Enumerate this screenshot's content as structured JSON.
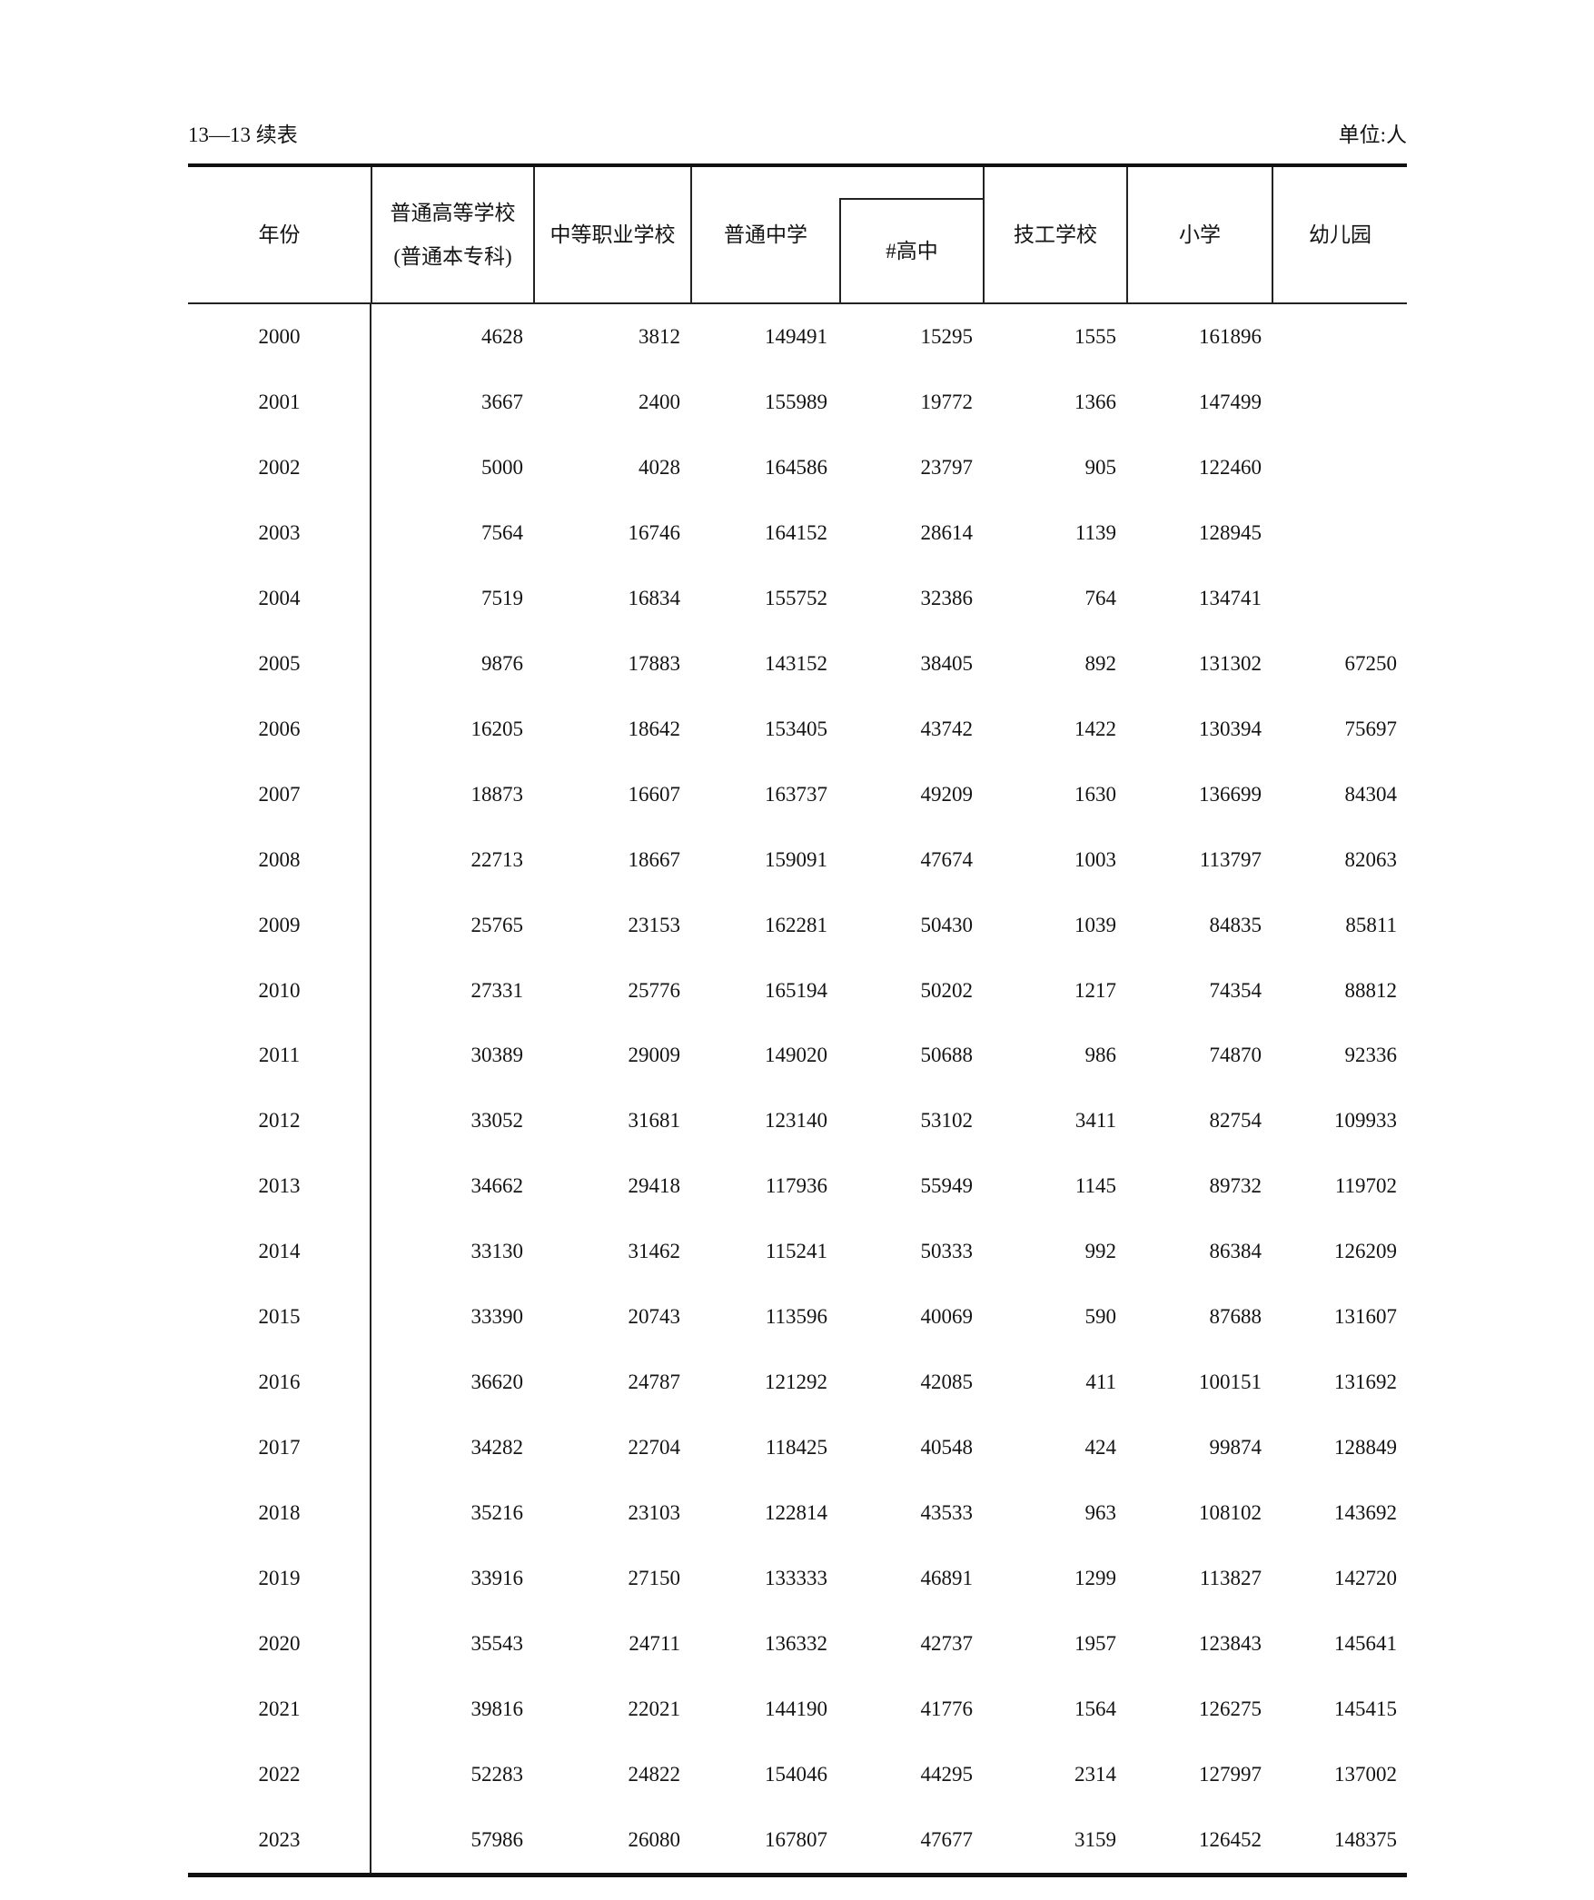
{
  "page": {
    "continuation_label": "13—13 续表",
    "unit_label": "单位:人"
  },
  "table": {
    "header": {
      "year": "年份",
      "higher_education_line1": "普通高等学校",
      "higher_education_line2": "(普通本专科)",
      "secondary_vocational": "中等职业学校",
      "regular_secondary": "普通中学",
      "senior_high": "#高中",
      "technical_school": "技工学校",
      "primary_school": "小学",
      "kindergarten": "幼儿园"
    },
    "rows": [
      {
        "year": "2000",
        "values": [
          "4628",
          "3812",
          "149491",
          "15295",
          "1555",
          "161896",
          ""
        ]
      },
      {
        "year": "2001",
        "values": [
          "3667",
          "2400",
          "155989",
          "19772",
          "1366",
          "147499",
          ""
        ]
      },
      {
        "year": "2002",
        "values": [
          "5000",
          "4028",
          "164586",
          "23797",
          "905",
          "122460",
          ""
        ]
      },
      {
        "year": "2003",
        "values": [
          "7564",
          "16746",
          "164152",
          "28614",
          "1139",
          "128945",
          ""
        ]
      },
      {
        "year": "2004",
        "values": [
          "7519",
          "16834",
          "155752",
          "32386",
          "764",
          "134741",
          ""
        ]
      },
      {
        "year": "2005",
        "values": [
          "9876",
          "17883",
          "143152",
          "38405",
          "892",
          "131302",
          "67250"
        ]
      },
      {
        "year": "2006",
        "values": [
          "16205",
          "18642",
          "153405",
          "43742",
          "1422",
          "130394",
          "75697"
        ]
      },
      {
        "year": "2007",
        "values": [
          "18873",
          "16607",
          "163737",
          "49209",
          "1630",
          "136699",
          "84304"
        ]
      },
      {
        "year": "2008",
        "values": [
          "22713",
          "18667",
          "159091",
          "47674",
          "1003",
          "113797",
          "82063"
        ]
      },
      {
        "year": "2009",
        "values": [
          "25765",
          "23153",
          "162281",
          "50430",
          "1039",
          "84835",
          "85811"
        ]
      },
      {
        "year": "2010",
        "values": [
          "27331",
          "25776",
          "165194",
          "50202",
          "1217",
          "74354",
          "88812"
        ]
      },
      {
        "year": "2011",
        "values": [
          "30389",
          "29009",
          "149020",
          "50688",
          "986",
          "74870",
          "92336"
        ]
      },
      {
        "year": "2012",
        "values": [
          "33052",
          "31681",
          "123140",
          "53102",
          "3411",
          "82754",
          "109933"
        ]
      },
      {
        "year": "2013",
        "values": [
          "34662",
          "29418",
          "117936",
          "55949",
          "1145",
          "89732",
          "119702"
        ]
      },
      {
        "year": "2014",
        "values": [
          "33130",
          "31462",
          "115241",
          "50333",
          "992",
          "86384",
          "126209"
        ]
      },
      {
        "year": "2015",
        "values": [
          "33390",
          "20743",
          "113596",
          "40069",
          "590",
          "87688",
          "131607"
        ]
      },
      {
        "year": "2016",
        "values": [
          "36620",
          "24787",
          "121292",
          "42085",
          "411",
          "100151",
          "131692"
        ]
      },
      {
        "year": "2017",
        "values": [
          "34282",
          "22704",
          "118425",
          "40548",
          "424",
          "99874",
          "128849"
        ]
      },
      {
        "year": "2018",
        "values": [
          "35216",
          "23103",
          "122814",
          "43533",
          "963",
          "108102",
          "143692"
        ]
      },
      {
        "year": "2019",
        "values": [
          "33916",
          "27150",
          "133333",
          "46891",
          "1299",
          "113827",
          "142720"
        ]
      },
      {
        "year": "2020",
        "values": [
          "35543",
          "24711",
          "136332",
          "42737",
          "1957",
          "123843",
          "145641"
        ]
      },
      {
        "year": "2021",
        "values": [
          "39816",
          "22021",
          "144190",
          "41776",
          "1564",
          "126275",
          "145415"
        ]
      },
      {
        "year": "2022",
        "values": [
          "52283",
          "24822",
          "154046",
          "44295",
          "2314",
          "127997",
          "137002"
        ]
      },
      {
        "year": "2023",
        "values": [
          "57986",
          "26080",
          "167807",
          "47677",
          "3159",
          "126452",
          "148375"
        ]
      }
    ]
  }
}
